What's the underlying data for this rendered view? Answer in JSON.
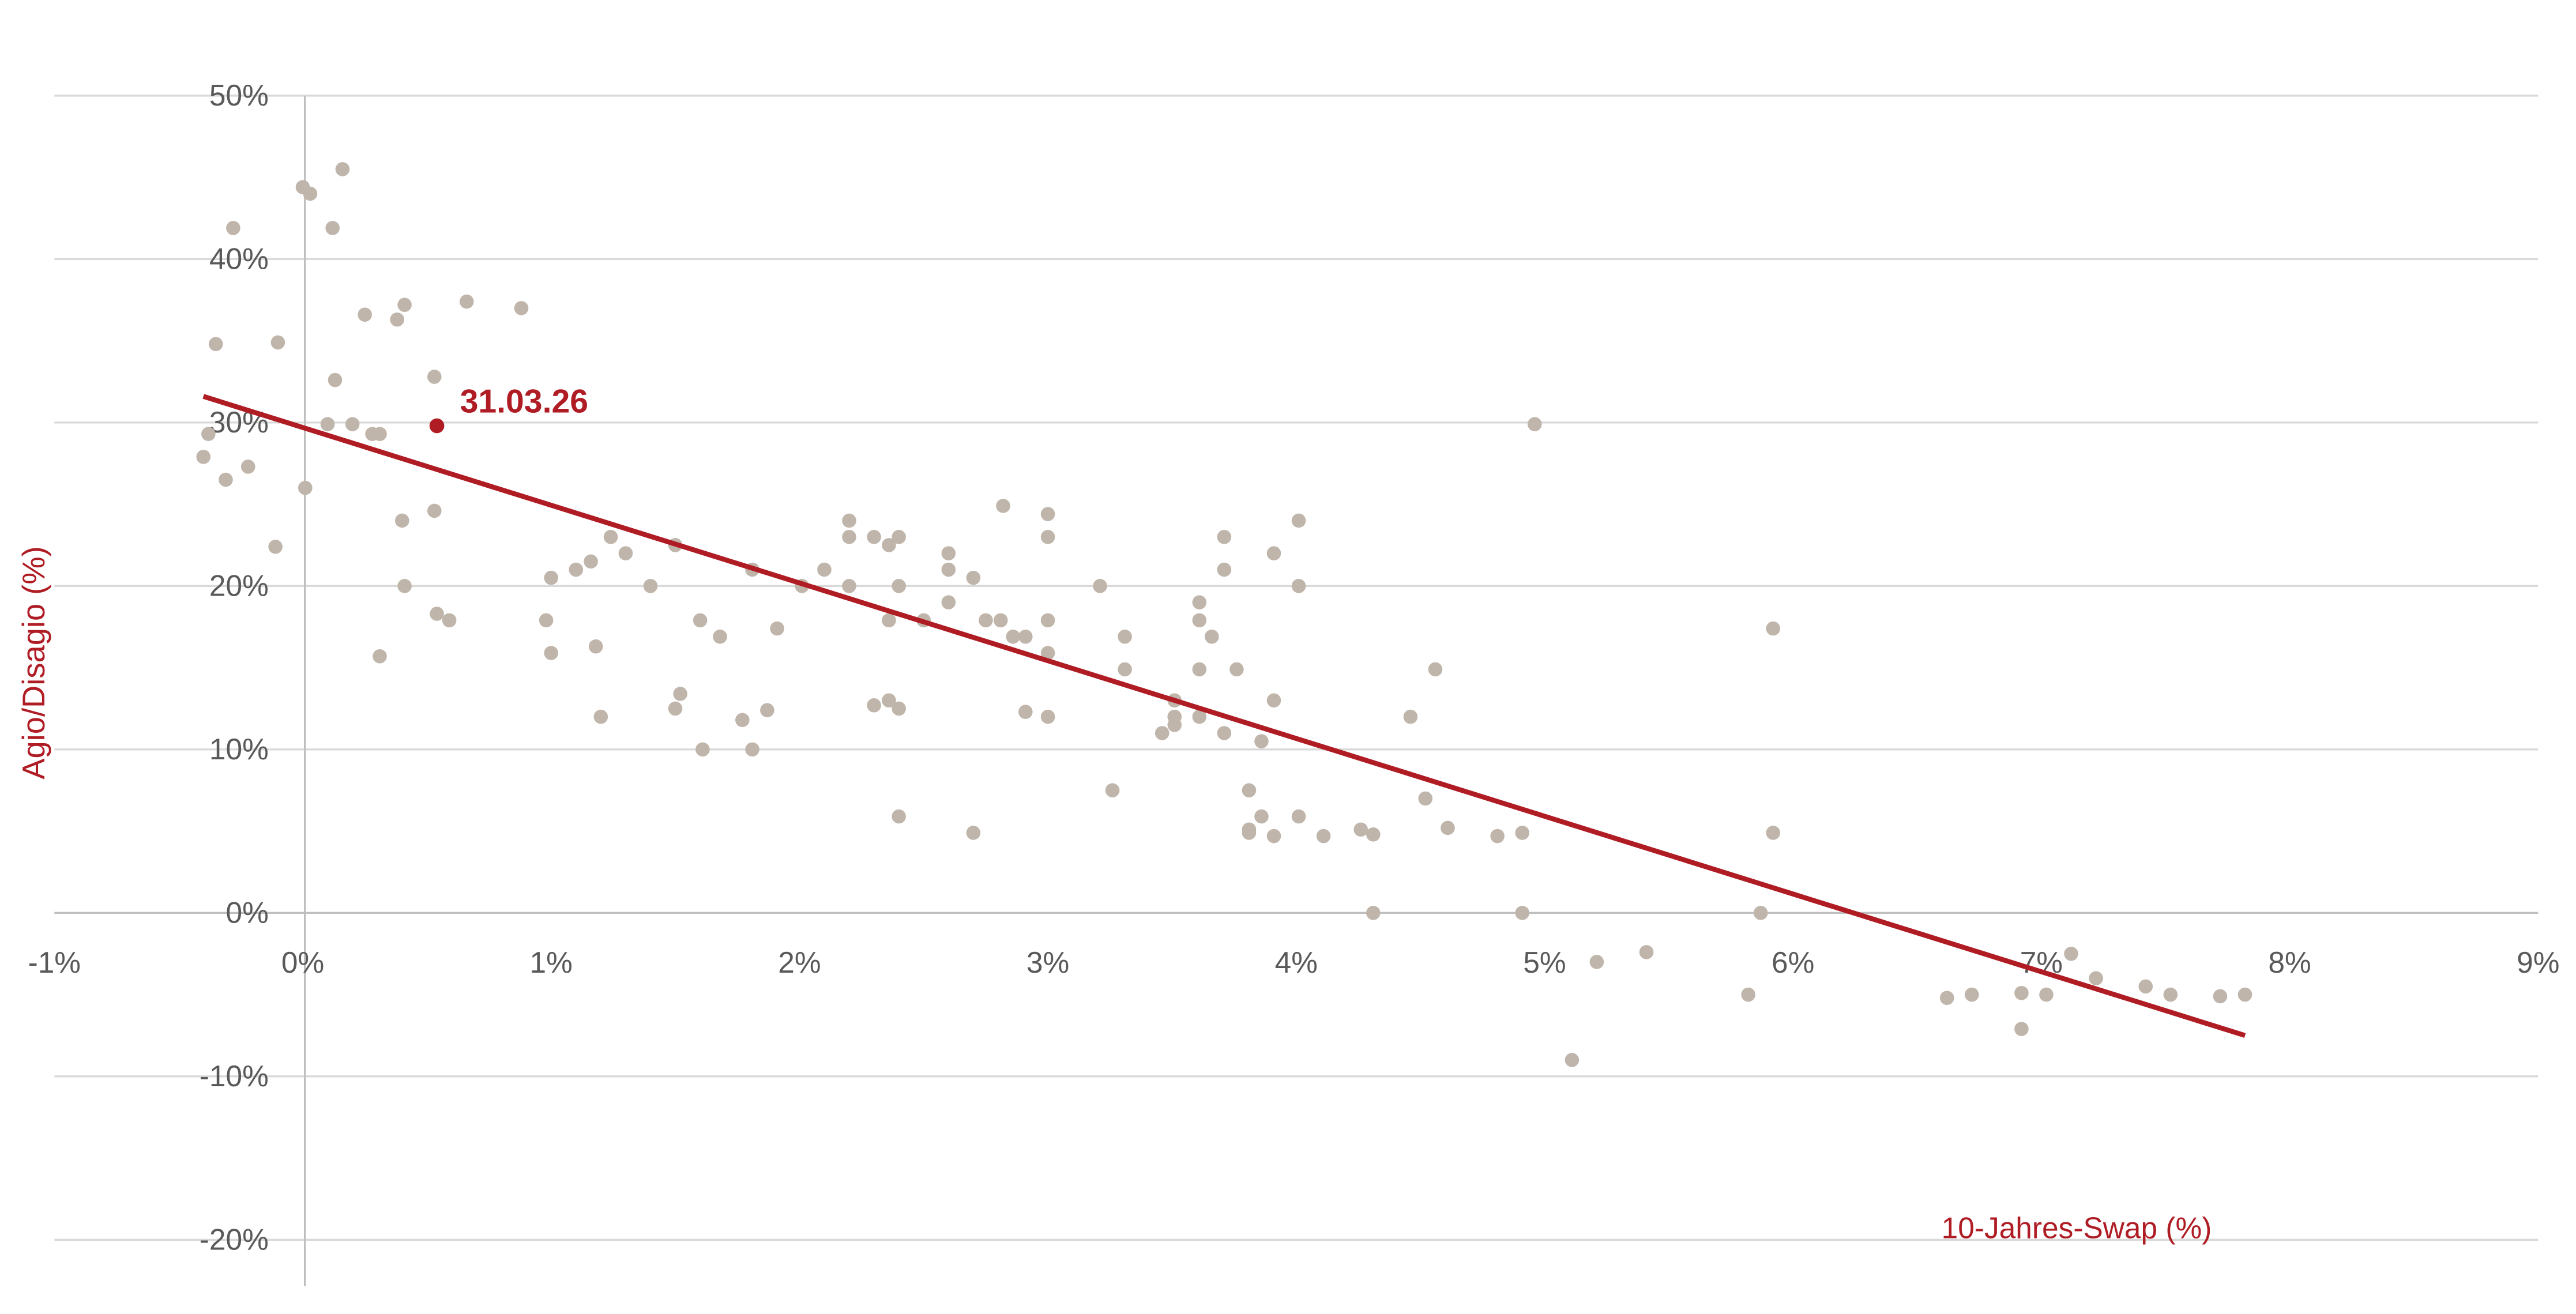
{
  "chart_data": {
    "type": "scatter",
    "title": "",
    "xlabel": "10-Jahres-Swap (%)",
    "ylabel": "Agio/Disagio (%)",
    "xlim": [
      -1,
      9
    ],
    "ylim": [
      -20,
      50
    ],
    "xticks": [
      "-1%",
      "0%",
      "1%",
      "2%",
      "3%",
      "4%",
      "5%",
      "6%",
      "7%",
      "8%",
      "9%"
    ],
    "yticks": [
      "50%",
      "40%",
      "30%",
      "20%",
      "10%",
      "0%",
      "-10%",
      "-20%"
    ],
    "grid": "horizontal",
    "colors": {
      "points": "#bfb5aa",
      "highlight": "#b01c24",
      "trend": "#b01c24",
      "text": "#595959"
    },
    "highlight": {
      "label": "31.03.26",
      "x": 0.54,
      "y": 29.8
    },
    "trendline": {
      "x": [
        -0.4,
        7.82
      ],
      "y": [
        31.6,
        -7.5
      ]
    },
    "points": [
      [
        -0.4,
        27.9
      ],
      [
        -0.38,
        29.3
      ],
      [
        -0.35,
        34.8
      ],
      [
        -0.31,
        26.5
      ],
      [
        -0.28,
        41.9
      ],
      [
        -0.22,
        27.3
      ],
      [
        -0.11,
        22.4
      ],
      [
        -0.1,
        34.9
      ],
      [
        0.0,
        44.4
      ],
      [
        0.01,
        26.0
      ],
      [
        0.03,
        44.0
      ],
      [
        0.1,
        29.9
      ],
      [
        0.12,
        41.9
      ],
      [
        0.13,
        32.6
      ],
      [
        0.16,
        45.5
      ],
      [
        0.2,
        29.9
      ],
      [
        0.25,
        36.6
      ],
      [
        0.28,
        29.3
      ],
      [
        0.31,
        29.3
      ],
      [
        0.31,
        15.7
      ],
      [
        0.38,
        36.3
      ],
      [
        0.4,
        24.0
      ],
      [
        0.41,
        37.2
      ],
      [
        0.41,
        20.0
      ],
      [
        0.53,
        32.8
      ],
      [
        0.53,
        24.6
      ],
      [
        0.54,
        18.3
      ],
      [
        0.59,
        17.9
      ],
      [
        0.66,
        37.4
      ],
      [
        0.88,
        37.0
      ],
      [
        0.98,
        17.9
      ],
      [
        1.0,
        20.5
      ],
      [
        1.0,
        15.9
      ],
      [
        1.1,
        21.0
      ],
      [
        1.16,
        21.5
      ],
      [
        1.18,
        16.3
      ],
      [
        1.2,
        12.0
      ],
      [
        1.24,
        23.0
      ],
      [
        1.3,
        22.0
      ],
      [
        1.4,
        20.0
      ],
      [
        1.5,
        12.5
      ],
      [
        1.5,
        22.5
      ],
      [
        1.52,
        13.4
      ],
      [
        1.6,
        17.9
      ],
      [
        1.61,
        10.0
      ],
      [
        1.68,
        16.9
      ],
      [
        1.77,
        11.8
      ],
      [
        1.81,
        21.0
      ],
      [
        1.81,
        10.0
      ],
      [
        1.87,
        12.4
      ],
      [
        1.91,
        17.4
      ],
      [
        2.01,
        20.0
      ],
      [
        2.1,
        21.0
      ],
      [
        2.2,
        24.0
      ],
      [
        2.2,
        23.0
      ],
      [
        2.2,
        20.0
      ],
      [
        2.3,
        23.0
      ],
      [
        2.3,
        12.7
      ],
      [
        2.36,
        22.5
      ],
      [
        2.36,
        17.9
      ],
      [
        2.36,
        13.0
      ],
      [
        2.4,
        23.0
      ],
      [
        2.4,
        20.0
      ],
      [
        2.4,
        12.5
      ],
      [
        2.4,
        5.9
      ],
      [
        2.5,
        17.9
      ],
      [
        2.6,
        22.0
      ],
      [
        2.6,
        21.0
      ],
      [
        2.6,
        19.0
      ],
      [
        2.7,
        20.5
      ],
      [
        2.7,
        4.9
      ],
      [
        2.75,
        17.9
      ],
      [
        2.81,
        17.9
      ],
      [
        2.82,
        24.9
      ],
      [
        2.86,
        16.9
      ],
      [
        2.91,
        16.9
      ],
      [
        2.91,
        12.3
      ],
      [
        3.0,
        24.4
      ],
      [
        3.0,
        23.0
      ],
      [
        3.0,
        17.9
      ],
      [
        3.0,
        15.9
      ],
      [
        3.0,
        12.0
      ],
      [
        3.21,
        20.0
      ],
      [
        3.26,
        7.5
      ],
      [
        3.31,
        16.9
      ],
      [
        3.31,
        14.9
      ],
      [
        3.46,
        11.0
      ],
      [
        3.51,
        13.0
      ],
      [
        3.51,
        12.0
      ],
      [
        3.51,
        11.5
      ],
      [
        3.61,
        19.0
      ],
      [
        3.61,
        17.9
      ],
      [
        3.61,
        14.9
      ],
      [
        3.61,
        12.0
      ],
      [
        3.66,
        16.9
      ],
      [
        3.71,
        23.0
      ],
      [
        3.71,
        21.0
      ],
      [
        3.71,
        11.0
      ],
      [
        3.76,
        14.9
      ],
      [
        3.81,
        7.5
      ],
      [
        3.81,
        5.1
      ],
      [
        3.81,
        4.9
      ],
      [
        3.86,
        10.5
      ],
      [
        3.86,
        5.9
      ],
      [
        3.91,
        22.0
      ],
      [
        3.91,
        13.0
      ],
      [
        3.91,
        4.7
      ],
      [
        4.01,
        24.0
      ],
      [
        4.01,
        20.0
      ],
      [
        4.01,
        5.9
      ],
      [
        4.11,
        4.7
      ],
      [
        4.26,
        5.1
      ],
      [
        4.31,
        4.8
      ],
      [
        4.31,
        0.0
      ],
      [
        4.46,
        12.0
      ],
      [
        4.52,
        7.0
      ],
      [
        4.56,
        14.9
      ],
      [
        4.61,
        5.2
      ],
      [
        4.81,
        4.7
      ],
      [
        4.91,
        4.9
      ],
      [
        4.91,
        0.0
      ],
      [
        4.96,
        29.9
      ],
      [
        5.11,
        -9.0
      ],
      [
        5.21,
        -3.0
      ],
      [
        5.41,
        -2.4
      ],
      [
        5.82,
        -5.0
      ],
      [
        5.87,
        0.0
      ],
      [
        5.92,
        17.4
      ],
      [
        5.92,
        4.9
      ],
      [
        6.62,
        -5.2
      ],
      [
        6.72,
        -5.0
      ],
      [
        6.92,
        -4.9
      ],
      [
        6.92,
        -7.1
      ],
      [
        7.02,
        -5.0
      ],
      [
        7.12,
        -2.5
      ],
      [
        7.22,
        -4.0
      ],
      [
        7.42,
        -4.5
      ],
      [
        7.52,
        -5.0
      ],
      [
        7.72,
        -5.1
      ],
      [
        7.82,
        -5.0
      ]
    ]
  }
}
